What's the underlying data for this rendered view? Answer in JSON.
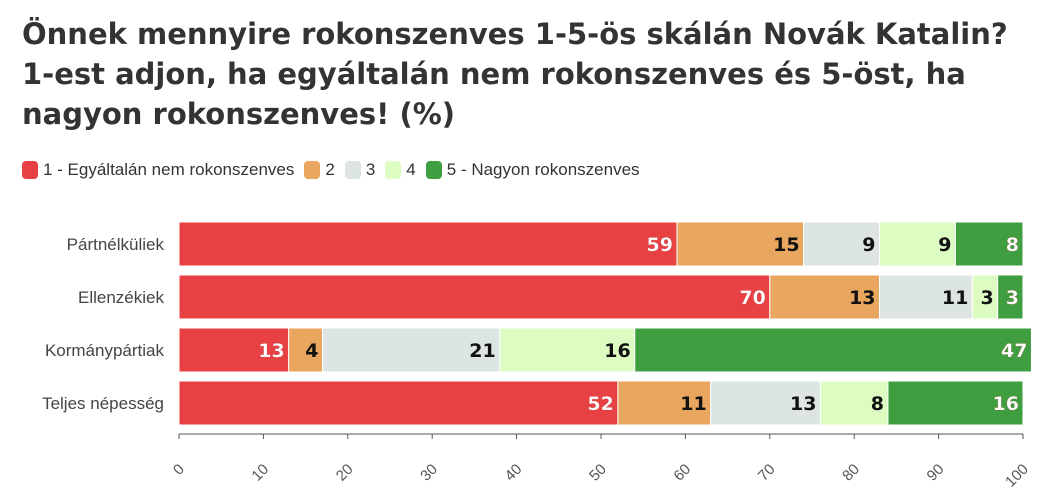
{
  "chart_data": {
    "type": "bar",
    "orientation": "horizontal",
    "stacked": true,
    "title": "Önnek mennyire rokonszenves 1-5-ös skálán Novák Katalin? 1-est adjon, ha egyáltalán nem rokonszenves és 5-öst, ha nagyon rokonszenves! (%)",
    "categories": [
      "Pártnélküliek",
      "Ellenzékiek",
      "Kormánypártiak",
      "Teljes népesség"
    ],
    "series": [
      {
        "name": "1 - Egyáltalán nem rokonszenves",
        "color": "#e84144",
        "label_color": "#ffffff",
        "values": [
          59,
          70,
          13,
          52
        ]
      },
      {
        "name": "2",
        "color": "#e8a65f",
        "label_color": "#111111",
        "values": [
          15,
          13,
          4,
          11
        ]
      },
      {
        "name": "3",
        "color": "#dce5e3",
        "label_color": "#111111",
        "values": [
          9,
          11,
          21,
          13
        ]
      },
      {
        "name": "4",
        "color": "#dcfcc2",
        "label_color": "#111111",
        "values": [
          9,
          3,
          16,
          8
        ]
      },
      {
        "name": "5 - Nagyon rokonszenves",
        "color": "#3f9e40",
        "label_color": "#ffffff",
        "values": [
          8,
          3,
          47,
          16
        ]
      }
    ],
    "xlim": [
      0,
      100
    ],
    "xticks": [
      "0",
      "10",
      "20",
      "30",
      "40",
      "50",
      "60",
      "70",
      "80",
      "90",
      "100"
    ],
    "legend_position": "top-left",
    "grid": false
  }
}
